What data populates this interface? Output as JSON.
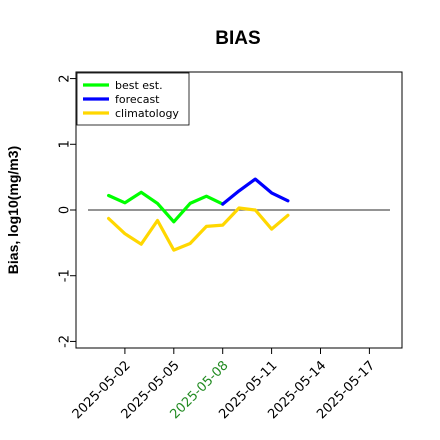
{
  "chart_data": {
    "type": "line",
    "title": "BIAS",
    "xlabel": "",
    "ylabel": "Bias, log10(mg/m3)",
    "x_ticks": [
      "2025-05-02",
      "2025-05-05",
      "2025-05-08",
      "2025-05-11",
      "2025-05-14",
      "2025-05-17"
    ],
    "highlighted_x_tick": "2025-05-08",
    "highlight_color": "#228b22",
    "y_ticks": [
      -2,
      -1,
      0,
      1,
      2
    ],
    "ylim": [
      -2.1,
      2.1
    ],
    "xlim": [
      "2025-04-29",
      "2025-05-19"
    ],
    "reference_line": 0,
    "legend_position": "top-left",
    "series": [
      {
        "name": "best est.",
        "color": "#00ff00",
        "x": [
          "2025-05-01",
          "2025-05-02",
          "2025-05-03",
          "2025-05-04",
          "2025-05-05",
          "2025-05-06",
          "2025-05-07",
          "2025-05-08"
        ],
        "values": [
          0.22,
          0.11,
          0.27,
          0.1,
          -0.18,
          0.1,
          0.21,
          0.09
        ]
      },
      {
        "name": "forecast",
        "color": "#0000ff",
        "x": [
          "2025-05-08",
          "2025-05-09",
          "2025-05-10",
          "2025-05-11",
          "2025-05-12"
        ],
        "values": [
          0.09,
          0.29,
          0.47,
          0.26,
          0.14
        ]
      },
      {
        "name": "climatology",
        "color": "#ffd700",
        "x": [
          "2025-05-01",
          "2025-05-02",
          "2025-05-03",
          "2025-05-04",
          "2025-05-05",
          "2025-05-06",
          "2025-05-07",
          "2025-05-08",
          "2025-05-09",
          "2025-05-10",
          "2025-05-11",
          "2025-05-12"
        ],
        "values": [
          -0.13,
          -0.36,
          -0.52,
          -0.16,
          -0.61,
          -0.51,
          -0.25,
          -0.23,
          0.03,
          0.0,
          -0.29,
          -0.08
        ]
      }
    ]
  }
}
